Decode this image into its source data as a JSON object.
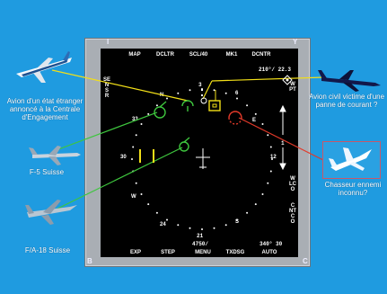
{
  "softkeys_top": [
    "MAP",
    "DCLTR",
    "SCL/40",
    "MK1",
    "DCNTR"
  ],
  "softkeys_bottom": [
    "EXP",
    "STEP",
    "MENU",
    "TXDSG",
    "AUTO"
  ],
  "left_vertical": "SENSR",
  "right_vertical_top": "WPT",
  "right_vertical_bottom": [
    "WLCO",
    "CNTCO"
  ],
  "corners": {
    "tl": "I",
    "tr": "Y",
    "bl": "B",
    "br": "C"
  },
  "readouts": {
    "top_right": "210°/ 22.3",
    "bottom_center_1": "21",
    "bottom_center_2": "4750/",
    "bottom_right": "340° 30",
    "range_3": "3",
    "right_1": "1"
  },
  "compass": {
    "N": "N",
    "E": "E",
    "S": "S",
    "W": "W",
    "n3": "3",
    "n6": "6",
    "n12": "12",
    "n24": "24",
    "n30": "30",
    "n33": "33"
  },
  "captions": {
    "foreign_jet": "Avion d'un état étranger annoncé à la Centrale d'Engagement",
    "civil_jet": "Avion civil victime d'une panne de courant ?",
    "f5": "F-5 Suisse",
    "fa18": "F/A-18 Suisse",
    "unknown": "Chasseur ennemi inconnu?"
  },
  "colors": {
    "background": "#1f9be0",
    "yellow": "#f2df18",
    "green": "#3ec63e",
    "red": "#e33a2a",
    "friend": "#3ec63e"
  }
}
